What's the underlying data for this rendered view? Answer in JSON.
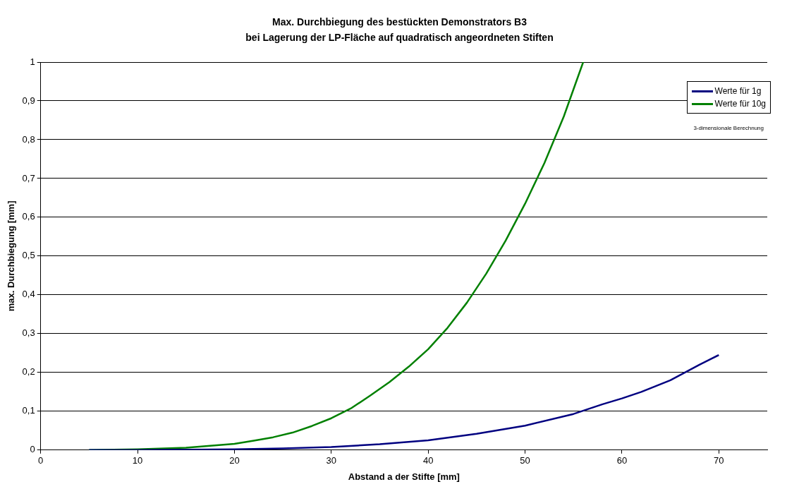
{
  "chart_data": {
    "type": "line",
    "title": "Max. Durchbiegung des bestückten Demonstrators B3",
    "subtitle": "bei Lagerung der LP-Fläche auf quadratisch angeordneten Stiften",
    "xlabel": "Abstand a der Stifte [mm]",
    "ylabel": "max. Durchbiegung [mm]",
    "series": [
      {
        "name": "Werte für 1g",
        "color": "#000080",
        "x": [
          5,
          10,
          15,
          20,
          25,
          30,
          35,
          40,
          45,
          50,
          55,
          58,
          60,
          62,
          65,
          68,
          70
        ],
        "values": [
          0,
          0,
          0.001,
          0.002,
          0.004,
          0.008,
          0.015,
          0.025,
          0.042,
          0.063,
          0.093,
          0.118,
          0.133,
          0.15,
          0.18,
          0.22,
          0.245
        ]
      },
      {
        "name": "Werte für 10g",
        "color": "#008000",
        "x": [
          5,
          10,
          15,
          20,
          22,
          24,
          26,
          28,
          30,
          32,
          34,
          36,
          38,
          40,
          42,
          44,
          46,
          48,
          50,
          52,
          54,
          55,
          56
        ],
        "values": [
          0,
          0.002,
          0.006,
          0.016,
          0.024,
          0.033,
          0.045,
          0.062,
          0.082,
          0.107,
          0.14,
          0.175,
          0.215,
          0.26,
          0.315,
          0.38,
          0.455,
          0.54,
          0.635,
          0.74,
          0.86,
          0.93,
          1.0
        ]
      }
    ],
    "xlim": [
      0,
      75
    ],
    "xticks": [
      0,
      10,
      20,
      30,
      40,
      50,
      60,
      70
    ],
    "ylim": [
      0,
      1
    ],
    "yticks": [
      0,
      {
        "value": 0.1,
        "label": "0,1"
      },
      {
        "value": 0.2,
        "label": "0,2"
      },
      {
        "value": 0.3,
        "label": "0,3"
      },
      {
        "value": 0.4,
        "label": "0,4"
      },
      {
        "value": 0.5,
        "label": "0,5"
      },
      {
        "value": 0.6,
        "label": "0,6"
      },
      {
        "value": 0.7,
        "label": "0,7"
      },
      {
        "value": 0.8,
        "label": "0,8"
      },
      {
        "value": 0.9,
        "label": "0,9"
      },
      1
    ],
    "grid": "y",
    "legend": "top right",
    "marker": "none",
    "line_style": "solid",
    "annotations": [
      "3-dimensionale Berechnung"
    ]
  }
}
